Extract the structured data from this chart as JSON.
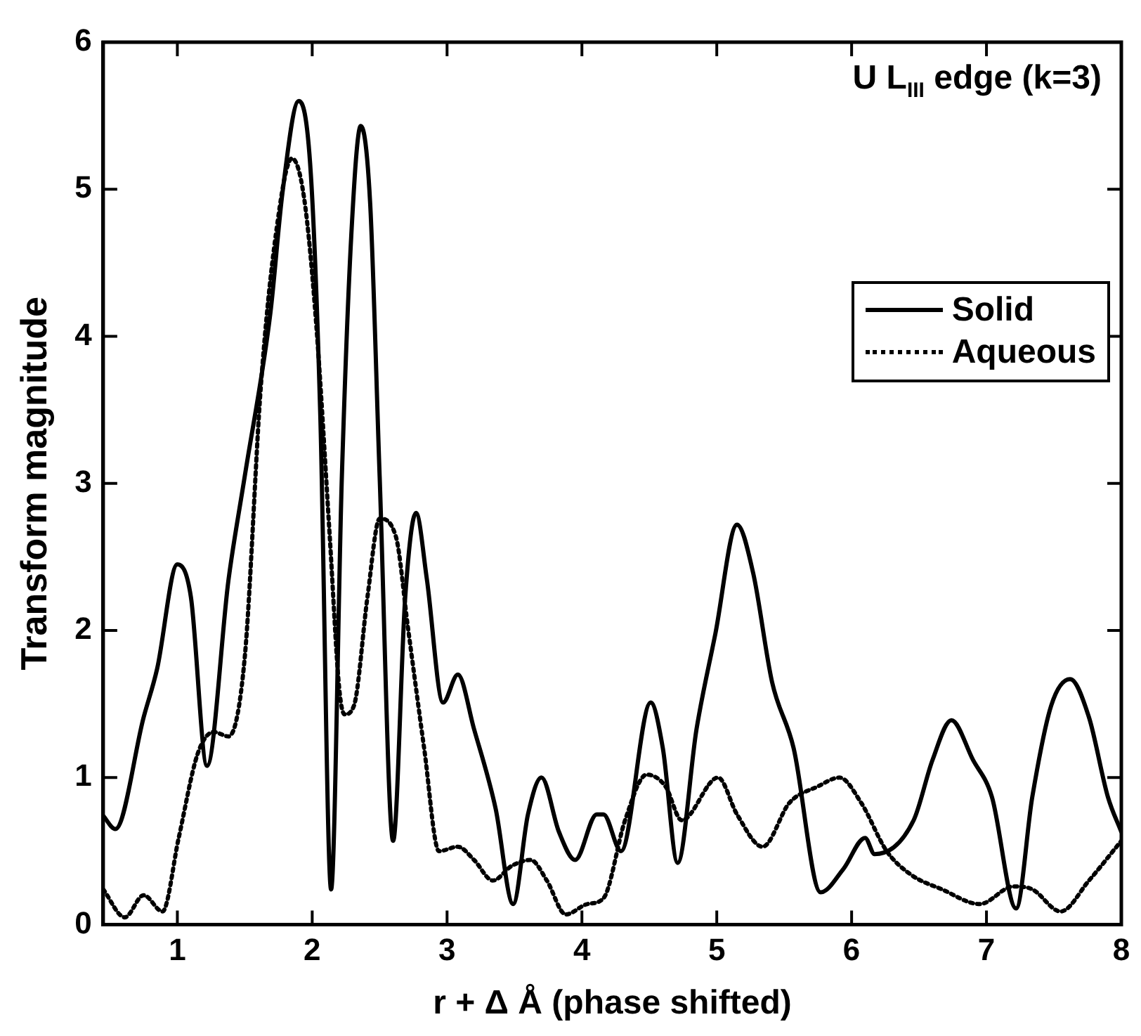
{
  "chart_data": {
    "type": "line",
    "xlabel": "r + Δ Å (phase shifted)",
    "ylabel": "Transform magnitude",
    "annotations": [
      "U L$_{III}$ edge (k=3)"
    ],
    "xlim": [
      0.45,
      8
    ],
    "xticks": [
      1,
      2,
      3,
      4,
      5,
      6,
      7,
      8
    ],
    "ylim": [
      0,
      6
    ],
    "yticks": [
      0,
      1,
      2,
      3,
      4,
      5,
      6
    ],
    "grid": false,
    "legend": "right",
    "marker": "none",
    "series": [
      {
        "name": "Solid",
        "color": "#000000",
        "line_style": "solid",
        "x": [
          0.45,
          0.54,
          0.75,
          0.85,
          1.0,
          1.1,
          1.22,
          1.38,
          1.5,
          1.69,
          1.78,
          1.9,
          1.99,
          2.06,
          2.14,
          2.22,
          2.29,
          2.36,
          2.43,
          2.5,
          2.6,
          2.69,
          2.77,
          2.85,
          2.97,
          3.08,
          3.2,
          3.36,
          3.49,
          3.6,
          3.7,
          3.83,
          3.95,
          4.11,
          4.16,
          4.29,
          4.51,
          4.6,
          4.71,
          4.85,
          4.99,
          5.15,
          5.27,
          5.41,
          5.57,
          5.77,
          5.94,
          6.1,
          6.17,
          6.46,
          6.6,
          6.74,
          6.9,
          7.04,
          7.22,
          7.34,
          7.48,
          7.62,
          7.76,
          7.9,
          8.0
        ],
        "values": [
          0.74,
          0.65,
          1.41,
          1.74,
          2.45,
          2.23,
          1.08,
          2.35,
          3.05,
          4.16,
          4.98,
          5.6,
          5.1,
          3.46,
          0.24,
          3.05,
          4.69,
          5.43,
          4.9,
          3.05,
          0.57,
          2.23,
          2.8,
          2.35,
          1.51,
          1.7,
          1.33,
          0.79,
          0.14,
          0.75,
          1.0,
          0.63,
          0.44,
          0.75,
          0.75,
          0.5,
          1.51,
          1.2,
          0.42,
          1.33,
          1.98,
          2.72,
          2.39,
          1.65,
          1.2,
          0.22,
          0.38,
          0.59,
          0.48,
          0.71,
          1.12,
          1.39,
          1.12,
          0.87,
          0.11,
          0.87,
          1.49,
          1.67,
          1.41,
          0.87,
          0.63
        ]
      },
      {
        "name": "Aqueous",
        "color": "#000000",
        "line_style": "dotted",
        "x": [
          0.45,
          0.61,
          0.75,
          0.89,
          1.01,
          1.15,
          1.27,
          1.38,
          1.5,
          1.62,
          1.73,
          1.85,
          1.94,
          2.03,
          2.13,
          2.2,
          2.24,
          2.31,
          2.41,
          2.5,
          2.62,
          2.71,
          2.83,
          2.94,
          3.08,
          3.2,
          3.34,
          3.48,
          3.62,
          3.74,
          3.88,
          4.04,
          4.16,
          4.32,
          4.48,
          4.62,
          4.74,
          5.01,
          5.15,
          5.34,
          5.54,
          5.75,
          5.91,
          6.07,
          6.26,
          6.44,
          6.67,
          6.95,
          7.2,
          7.34,
          7.55,
          7.76,
          8.0
        ],
        "values": [
          0.24,
          0.05,
          0.2,
          0.09,
          0.59,
          1.16,
          1.31,
          1.28,
          1.82,
          3.67,
          4.69,
          5.21,
          4.94,
          4.08,
          2.64,
          1.61,
          1.43,
          1.49,
          2.23,
          2.76,
          2.64,
          2.02,
          1.2,
          0.5,
          0.53,
          0.44,
          0.3,
          0.4,
          0.44,
          0.3,
          0.07,
          0.14,
          0.18,
          0.71,
          1.02,
          0.94,
          0.71,
          1.0,
          0.75,
          0.53,
          0.83,
          0.94,
          1.0,
          0.83,
          0.5,
          0.34,
          0.24,
          0.14,
          0.26,
          0.24,
          0.09,
          0.3,
          0.57
        ]
      }
    ]
  }
}
